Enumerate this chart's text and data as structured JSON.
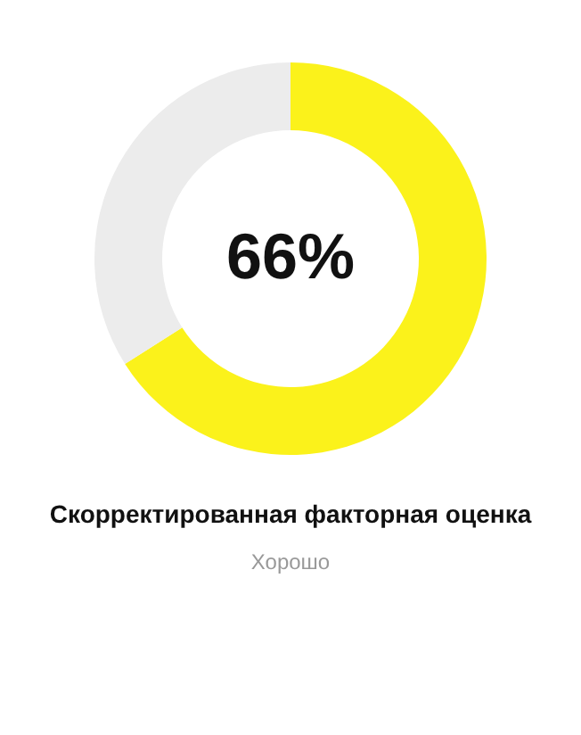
{
  "chart_data": {
    "type": "donut",
    "title": "Скорректированная факторная оценка",
    "subtitle": "Хорошо",
    "categories": [
      null,
      null
    ],
    "values": [
      66,
      34
    ],
    "colors": [
      "#fbf21b",
      "#ececec"
    ],
    "annotations": [
      "66%"
    ]
  }
}
